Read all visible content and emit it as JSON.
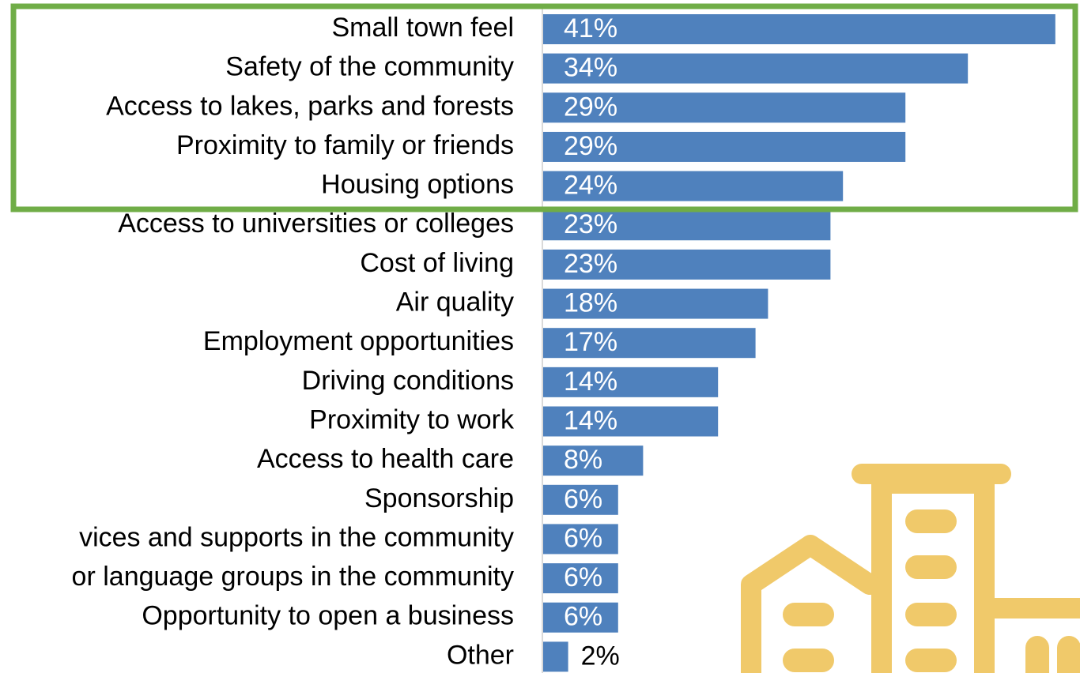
{
  "chart_data": {
    "type": "bar",
    "orientation": "horizontal",
    "color": "#4f81bd",
    "categories": [
      "Small town feel",
      "Safety of the community",
      "Access to lakes, parks and forests",
      "Proximity to family or friends",
      "Housing options",
      "Access to universities or colleges",
      "Cost of living",
      "Air quality",
      "Employment opportunities",
      "Driving conditions",
      "Proximity to work",
      "Access to health care",
      "Sponsorship",
      "vices and supports in the community",
      "or language groups in the community",
      "Opportunity to open a business",
      "Other"
    ],
    "values": [
      41,
      34,
      29,
      29,
      24,
      23,
      23,
      18,
      17,
      14,
      14,
      8,
      6,
      6,
      6,
      6,
      2
    ],
    "value_labels": [
      "41%",
      "34%",
      "29%",
      "29%",
      "24%",
      "23%",
      "23%",
      "18%",
      "17%",
      "14%",
      "14%",
      "8%",
      "6%",
      "6%",
      "6%",
      "6%",
      "2%"
    ]
  }
}
